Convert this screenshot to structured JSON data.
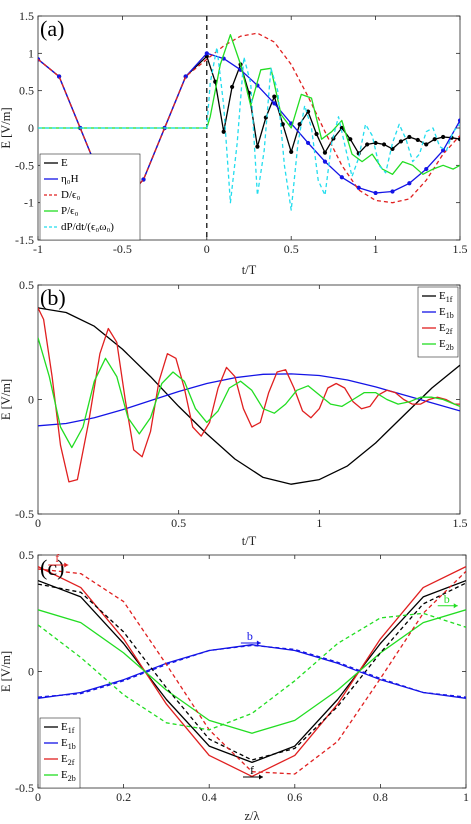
{
  "chart_data": [
    {
      "panel_label": "(a)",
      "type": "line",
      "xlabel": "t/T",
      "ylabel": "E [V/m]",
      "xlim": [
        -1,
        1.5
      ],
      "ylim": [
        -1.5,
        1.5
      ],
      "xticks": [
        -1,
        -0.5,
        0,
        0.5,
        1,
        1.5
      ],
      "yticks": [
        -1.5,
        -1,
        -0.5,
        0,
        0.5,
        1,
        1.5
      ],
      "xtick_labels": [
        "-1",
        "-0.5",
        "0",
        "0.5",
        "1",
        "1.5"
      ],
      "ytick_labels": [
        "-1.5",
        "-1",
        "-0.5",
        "0",
        "0.5",
        "1",
        "1.5"
      ],
      "vline_x": 0,
      "legend_position": "lower-left",
      "series": [
        {
          "name": "E",
          "color": "#000000",
          "style": "solid-marker",
          "x": [
            -1,
            -0.875,
            -0.75,
            -0.625,
            -0.5,
            -0.375,
            -0.25,
            -0.125,
            0,
            0.05,
            0.1,
            0.15,
            0.2,
            0.25,
            0.3,
            0.35,
            0.4,
            0.45,
            0.5,
            0.55,
            0.6,
            0.65,
            0.7,
            0.75,
            0.8,
            0.85,
            0.9,
            0.95,
            1.0,
            1.05,
            1.1,
            1.15,
            1.2,
            1.25,
            1.3,
            1.35,
            1.4,
            1.45,
            1.5
          ],
          "y": [
            0.92,
            0.69,
            0.0,
            -0.69,
            -1.0,
            -0.69,
            0.0,
            0.69,
            0.96,
            0.62,
            -0.05,
            0.55,
            0.85,
            0.47,
            -0.25,
            0.14,
            0.42,
            0.05,
            -0.32,
            0.05,
            0.22,
            -0.08,
            -0.33,
            -0.14,
            0.0,
            -0.15,
            -0.34,
            -0.22,
            -0.2,
            -0.22,
            -0.28,
            -0.18,
            -0.12,
            -0.16,
            -0.22,
            -0.15,
            -0.12,
            -0.13,
            -0.15
          ]
        },
        {
          "name": "η₀H",
          "color": "#1414e6",
          "style": "solid-marker",
          "x": [
            -1,
            -0.875,
            -0.75,
            -0.625,
            -0.5,
            -0.375,
            -0.25,
            -0.125,
            0,
            0.1,
            0.2,
            0.3,
            0.4,
            0.5,
            0.6,
            0.7,
            0.8,
            0.9,
            1.0,
            1.1,
            1.2,
            1.3,
            1.4,
            1.5
          ],
          "y": [
            0.92,
            0.69,
            0.0,
            -0.69,
            -1.0,
            -0.69,
            0.0,
            0.69,
            1.0,
            0.93,
            0.78,
            0.57,
            0.33,
            0.06,
            -0.2,
            -0.45,
            -0.66,
            -0.8,
            -0.87,
            -0.85,
            -0.74,
            -0.55,
            -0.3,
            0.1
          ]
        },
        {
          "name": "D/ϵ₀",
          "color": "#e02020",
          "style": "dashed",
          "x": [
            -1,
            -0.875,
            -0.75,
            -0.625,
            -0.5,
            -0.375,
            -0.25,
            -0.125,
            0,
            0.1,
            0.2,
            0.3,
            0.4,
            0.5,
            0.6,
            0.7,
            0.8,
            0.9,
            1.0,
            1.1,
            1.2,
            1.3,
            1.4,
            1.5
          ],
          "y": [
            0.92,
            0.69,
            0.0,
            -0.69,
            -1.0,
            -0.69,
            0.0,
            0.69,
            0.92,
            1.1,
            1.23,
            1.27,
            1.15,
            0.85,
            0.42,
            -0.05,
            -0.5,
            -0.83,
            -0.97,
            -1.0,
            -0.95,
            -0.7,
            -0.35,
            -0.1
          ]
        },
        {
          "name": "P/ϵ₀",
          "color": "#22dd22",
          "style": "solid",
          "x": [
            -1,
            0,
            0.02,
            0.08,
            0.14,
            0.2,
            0.26,
            0.32,
            0.38,
            0.44,
            0.5,
            0.56,
            0.62,
            0.68,
            0.74,
            0.8,
            0.86,
            0.92,
            0.98,
            1.04,
            1.1,
            1.16,
            1.22,
            1.28,
            1.34,
            1.4,
            1.46,
            1.5
          ],
          "y": [
            0,
            0,
            0.15,
            0.85,
            1.25,
            0.85,
            0.3,
            0.78,
            0.8,
            0.18,
            0.0,
            0.45,
            0.4,
            -0.15,
            -0.05,
            0.1,
            -0.35,
            -0.45,
            -0.35,
            -0.55,
            -0.62,
            -0.45,
            -0.5,
            -0.62,
            -0.55,
            -0.5,
            -0.55,
            -0.5
          ]
        },
        {
          "name": "dP/dt/(ϵ₀ω₀)",
          "color": "#22ddee",
          "style": "dashed",
          "x": [
            -1,
            0,
            0.02,
            0.06,
            0.1,
            0.14,
            0.18,
            0.22,
            0.26,
            0.3,
            0.34,
            0.38,
            0.42,
            0.46,
            0.5,
            0.54,
            0.58,
            0.62,
            0.66,
            0.7,
            0.74,
            0.78,
            0.82,
            0.86,
            0.9,
            0.94,
            0.98,
            1.02,
            1.06,
            1.1,
            1.14,
            1.18,
            1.22,
            1.26,
            1.3,
            1.34,
            1.38,
            1.42,
            1.46,
            1.5
          ],
          "y": [
            0,
            0,
            0.6,
            1.08,
            0.3,
            -1.0,
            -0.2,
            0.95,
            0.6,
            -0.9,
            -0.3,
            0.8,
            0.5,
            -0.5,
            -1.1,
            -0.2,
            0.3,
            0.0,
            -0.7,
            -0.9,
            -0.2,
            0.15,
            -0.25,
            -0.65,
            -0.4,
            0.05,
            -0.1,
            -0.5,
            -0.6,
            -0.2,
            0.05,
            -0.15,
            -0.45,
            -0.35,
            -0.05,
            0.0,
            -0.25,
            -0.3,
            -0.05,
            0.05
          ]
        }
      ]
    },
    {
      "panel_label": "(b)",
      "type": "line",
      "xlabel": "t/T",
      "ylabel": "E [V/m]",
      "xlim": [
        0,
        1.5
      ],
      "ylim": [
        -0.5,
        0.5
      ],
      "xticks": [
        0,
        0.5,
        1,
        1.5
      ],
      "yticks": [
        -0.5,
        0,
        0.5
      ],
      "xtick_labels": [
        "0",
        "0.5",
        "1",
        "1.5"
      ],
      "ytick_labels": [
        "-0.5",
        "0",
        "0.5"
      ],
      "legend_position": "top-right",
      "series": [
        {
          "name": "E1f",
          "color": "#000000",
          "style": "solid",
          "x": [
            0,
            0.1,
            0.2,
            0.3,
            0.4,
            0.5,
            0.6,
            0.7,
            0.8,
            0.9,
            1.0,
            1.1,
            1.2,
            1.3,
            1.4,
            1.5
          ],
          "y": [
            0.4,
            0.38,
            0.32,
            0.22,
            0.1,
            -0.03,
            -0.15,
            -0.26,
            -0.34,
            -0.37,
            -0.35,
            -0.29,
            -0.19,
            -0.07,
            0.05,
            0.15
          ]
        },
        {
          "name": "E1b",
          "color": "#1414e6",
          "style": "solid",
          "x": [
            0,
            0.1,
            0.2,
            0.3,
            0.4,
            0.5,
            0.6,
            0.7,
            0.8,
            0.9,
            1.0,
            1.1,
            1.2,
            1.3,
            1.4,
            1.5
          ],
          "y": [
            -0.115,
            -0.105,
            -0.08,
            -0.045,
            -0.005,
            0.035,
            0.07,
            0.095,
            0.11,
            0.112,
            0.105,
            0.085,
            0.055,
            0.02,
            -0.015,
            -0.05
          ]
        },
        {
          "name": "E2f",
          "color": "#e02020",
          "style": "solid",
          "x": [
            0,
            0.02,
            0.05,
            0.08,
            0.11,
            0.14,
            0.18,
            0.22,
            0.25,
            0.28,
            0.31,
            0.34,
            0.37,
            0.4,
            0.43,
            0.46,
            0.49,
            0.52,
            0.55,
            0.58,
            0.61,
            0.64,
            0.67,
            0.7,
            0.73,
            0.76,
            0.79,
            0.82,
            0.85,
            0.88,
            0.91,
            0.94,
            0.97,
            1.0,
            1.03,
            1.06,
            1.09,
            1.12,
            1.15,
            1.18,
            1.21,
            1.24,
            1.27,
            1.3,
            1.33,
            1.36,
            1.39,
            1.42,
            1.45,
            1.48,
            1.5
          ],
          "y": [
            0.4,
            0.35,
            0.1,
            -0.2,
            -0.36,
            -0.35,
            -0.1,
            0.2,
            0.31,
            0.25,
            0.0,
            -0.22,
            -0.25,
            -0.14,
            0.08,
            0.2,
            0.18,
            0.05,
            -0.12,
            -0.16,
            -0.1,
            0.05,
            0.14,
            0.1,
            -0.04,
            -0.12,
            -0.1,
            0.03,
            0.12,
            0.13,
            0.05,
            -0.05,
            -0.08,
            -0.04,
            0.05,
            0.07,
            0.05,
            -0.01,
            -0.04,
            -0.03,
            0.02,
            0.04,
            0.03,
            0.0,
            -0.02,
            -0.02,
            0.0,
            0.01,
            0.0,
            -0.02,
            -0.02
          ]
        },
        {
          "name": "E2b",
          "color": "#22dd22",
          "style": "solid",
          "x": [
            0,
            0.04,
            0.08,
            0.12,
            0.16,
            0.2,
            0.24,
            0.28,
            0.32,
            0.36,
            0.4,
            0.44,
            0.48,
            0.52,
            0.56,
            0.6,
            0.64,
            0.68,
            0.72,
            0.76,
            0.8,
            0.84,
            0.88,
            0.92,
            0.96,
            1.0,
            1.04,
            1.08,
            1.12,
            1.16,
            1.2,
            1.24,
            1.28,
            1.32,
            1.36,
            1.4,
            1.44,
            1.48,
            1.5
          ],
          "y": [
            0.27,
            0.1,
            -0.12,
            -0.21,
            -0.12,
            0.08,
            0.18,
            0.1,
            -0.08,
            -0.15,
            -0.08,
            0.07,
            0.12,
            0.08,
            -0.04,
            -0.1,
            -0.05,
            0.05,
            0.08,
            0.04,
            -0.04,
            -0.06,
            -0.02,
            0.04,
            0.06,
            0.02,
            -0.02,
            -0.03,
            0.0,
            0.03,
            0.03,
            0.0,
            -0.02,
            -0.01,
            0.01,
            0.01,
            0.0,
            -0.02,
            -0.03
          ]
        }
      ]
    },
    {
      "panel_label": "(c)",
      "type": "line",
      "xlabel": "z/λ",
      "ylabel": "E [V/m]",
      "xlim": [
        0,
        1
      ],
      "ylim": [
        -0.5,
        0.5
      ],
      "xticks": [
        0,
        0.2,
        0.4,
        0.6,
        0.8,
        1
      ],
      "yticks": [
        -0.5,
        0,
        0.5
      ],
      "xtick_labels": [
        "0",
        "0.2",
        "0.4",
        "0.6",
        "0.8",
        "1"
      ],
      "ytick_labels": [
        "-0.5",
        "0",
        "0.5"
      ],
      "legend_position": "lower-left",
      "annotations": [
        {
          "text": "f",
          "x": 0.045,
          "y": 0.47,
          "color": "#e02020"
        },
        {
          "text": "b",
          "x": 0.495,
          "y": 0.135,
          "color": "#1414e6"
        },
        {
          "text": "b",
          "x": 0.955,
          "y": 0.295,
          "color": "#22dd22"
        },
        {
          "text": "f",
          "x": 0.5,
          "y": -0.44,
          "color": "#000000"
        }
      ],
      "series": [
        {
          "name": "E1f",
          "color": "#000000",
          "style": "solid",
          "x": [
            0,
            0.1,
            0.2,
            0.3,
            0.4,
            0.5,
            0.6,
            0.7,
            0.8,
            0.9,
            1.0
          ],
          "y": [
            0.39,
            0.32,
            0.12,
            -0.12,
            -0.32,
            -0.39,
            -0.32,
            -0.12,
            0.12,
            0.32,
            0.39
          ]
        },
        {
          "name": "E1b",
          "color": "#1414e6",
          "style": "solid",
          "x": [
            0,
            0.1,
            0.2,
            0.3,
            0.4,
            0.5,
            0.6,
            0.7,
            0.8,
            0.9,
            1.0
          ],
          "y": [
            -0.115,
            -0.09,
            -0.035,
            0.035,
            0.09,
            0.115,
            0.09,
            0.035,
            -0.035,
            -0.09,
            -0.115
          ]
        },
        {
          "name": "E2f",
          "color": "#e02020",
          "style": "solid",
          "x": [
            0,
            0.1,
            0.2,
            0.3,
            0.4,
            0.5,
            0.6,
            0.7,
            0.8,
            0.9,
            1.0
          ],
          "y": [
            0.45,
            0.36,
            0.14,
            -0.14,
            -0.36,
            -0.45,
            -0.36,
            -0.14,
            0.14,
            0.36,
            0.45
          ]
        },
        {
          "name": "E2b",
          "color": "#22dd22",
          "style": "solid",
          "x": [
            0,
            0.1,
            0.2,
            0.3,
            0.4,
            0.5,
            0.6,
            0.7,
            0.8,
            0.9,
            1.0
          ],
          "y": [
            0.265,
            0.21,
            0.08,
            -0.08,
            -0.21,
            -0.265,
            -0.21,
            -0.08,
            0.08,
            0.21,
            0.265
          ]
        },
        {
          "name": "",
          "color": "#000000",
          "style": "dashed",
          "x": [
            0,
            0.1,
            0.2,
            0.3,
            0.4,
            0.5,
            0.6,
            0.7,
            0.8,
            0.9,
            1.0
          ],
          "y": [
            0.375,
            0.34,
            0.17,
            -0.07,
            -0.29,
            -0.38,
            -0.33,
            -0.15,
            0.08,
            0.29,
            0.38
          ]
        },
        {
          "name": "",
          "color": "#1414e6",
          "style": "dashed",
          "x": [
            0,
            0.1,
            0.2,
            0.3,
            0.4,
            0.5,
            0.6,
            0.7,
            0.8,
            0.9,
            1.0
          ],
          "y": [
            -0.11,
            -0.095,
            -0.04,
            0.03,
            0.09,
            0.112,
            0.095,
            0.04,
            -0.03,
            -0.09,
            -0.11
          ]
        },
        {
          "name": "",
          "color": "#e02020",
          "style": "dashed",
          "x": [
            0,
            0.1,
            0.2,
            0.3,
            0.4,
            0.5,
            0.6,
            0.7,
            0.8,
            0.9,
            1.0
          ],
          "y": [
            0.44,
            0.42,
            0.3,
            0.03,
            -0.25,
            -0.43,
            -0.44,
            -0.3,
            -0.03,
            0.25,
            0.43
          ]
        },
        {
          "name": "",
          "color": "#22dd22",
          "style": "dashed",
          "x": [
            0,
            0.1,
            0.2,
            0.3,
            0.4,
            0.5,
            0.6,
            0.7,
            0.8,
            0.9,
            1.0
          ],
          "y": [
            0.2,
            0.06,
            -0.1,
            -0.22,
            -0.25,
            -0.18,
            -0.04,
            0.12,
            0.23,
            0.25,
            0.19
          ]
        }
      ]
    }
  ]
}
